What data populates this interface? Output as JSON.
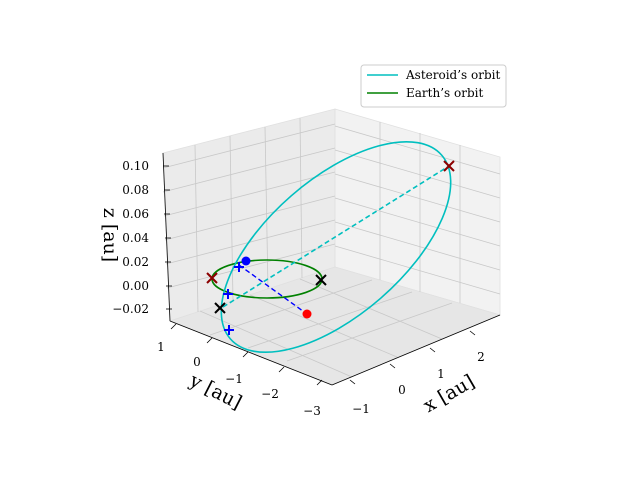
{
  "chart_data": {
    "type": "line",
    "projection": "3d",
    "title": "",
    "axes": {
      "x": {
        "label": "x [au]",
        "ticks": [
          "−1",
          "0",
          "1",
          "2"
        ],
        "range": [
          -1.5,
          2.8
        ]
      },
      "y": {
        "label": "y [au]",
        "ticks": [
          "1",
          "0",
          "−1",
          "−2",
          "−3"
        ],
        "range": [
          1.3,
          -3.2
        ]
      },
      "z": {
        "label": "z [au]",
        "ticks": [
          "0.10",
          "0.08",
          "0.06",
          "0.04",
          "0.02",
          "0.00",
          "−0.02"
        ],
        "range": [
          -0.03,
          0.11
        ]
      }
    },
    "grid": true,
    "legend": {
      "placement": "top-right",
      "entries": [
        {
          "label": "Asteroid’s orbit",
          "color": "#00bfbf",
          "style": "solid"
        },
        {
          "label": "Earth’s orbit",
          "color": "#008000",
          "style": "solid"
        }
      ]
    },
    "series": [
      {
        "name": "Asteroid’s orbit",
        "kind": "ellipse",
        "color": "#00bfbf"
      },
      {
        "name": "Earth’s orbit",
        "kind": "ellipse",
        "color": "#008000"
      },
      {
        "kind": "line-of-apsides",
        "style": "dashed",
        "color": "#00bfbf"
      },
      {
        "kind": "connecting-line",
        "style": "dashed",
        "color": "#0000ff"
      }
    ],
    "markers": [
      {
        "symbol": "x",
        "color": "#8b0000",
        "role": "asteroid-aphelion"
      },
      {
        "symbol": "x",
        "color": "#8b0000",
        "role": "earth-orbit-node"
      },
      {
        "symbol": "x",
        "color": "#000000",
        "role": "earth-orbit-node"
      },
      {
        "symbol": "x",
        "color": "#000000",
        "role": "earth-orbit-node"
      },
      {
        "symbol": "+",
        "color": "#0000ff",
        "role": "asteroid-orbit-point"
      },
      {
        "symbol": "+",
        "color": "#0000ff",
        "role": "asteroid-orbit-point"
      },
      {
        "symbol": "+",
        "color": "#0000ff",
        "role": "asteroid-orbit-point"
      },
      {
        "symbol": "dot",
        "color": "#0000ff",
        "role": "earth-position"
      },
      {
        "symbol": "dot",
        "color": "#ff0000",
        "role": "asteroid-position"
      }
    ]
  }
}
